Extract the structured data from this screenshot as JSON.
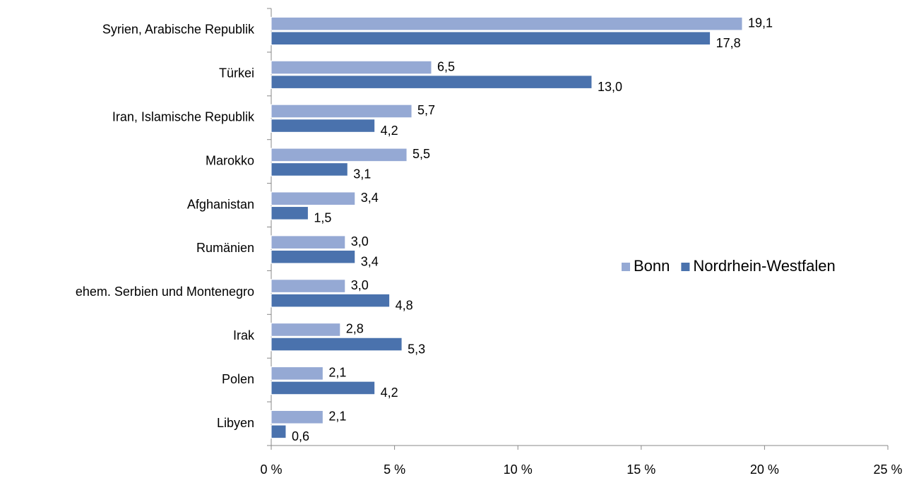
{
  "chart_data": {
    "type": "hbar",
    "categories": [
      "Syrien, Arabische Republik",
      "Türkei",
      "Iran, Islamische Republik",
      "Marokko",
      "Afghanistan",
      "Rumänien",
      "ehem. Serbien und Montenegro",
      "Irak",
      "Polen",
      "Libyen"
    ],
    "series": [
      {
        "name": "Bonn",
        "color": "#95a9d4",
        "values": [
          19.1,
          6.5,
          5.7,
          5.5,
          3.4,
          3.0,
          3.0,
          2.8,
          2.1,
          2.1
        ],
        "value_labels": [
          "19,1",
          "6,5",
          "5,7",
          "5,5",
          "3,4",
          "3,0",
          "3,0",
          "2,8",
          "2,1",
          "2,1"
        ]
      },
      {
        "name": "Nordrhein-Westfalen",
        "color": "#4a72ad",
        "values": [
          17.8,
          13.0,
          4.2,
          3.1,
          1.5,
          3.4,
          4.8,
          5.3,
          4.2,
          0.6
        ],
        "value_labels": [
          "17,8",
          "13,0",
          "4,2",
          "3,1",
          "1,5",
          "3,4",
          "4,8",
          "5,3",
          "4,2",
          "0,6"
        ]
      }
    ],
    "xlim": [
      0,
      25
    ],
    "xticks": [
      {
        "value": 0,
        "label": "0 %"
      },
      {
        "value": 5,
        "label": "5 %"
      },
      {
        "value": 10,
        "label": "10 %"
      },
      {
        "value": 15,
        "label": "15 %"
      },
      {
        "value": 20,
        "label": "20 %"
      },
      {
        "value": 25,
        "label": "25 %"
      }
    ]
  }
}
